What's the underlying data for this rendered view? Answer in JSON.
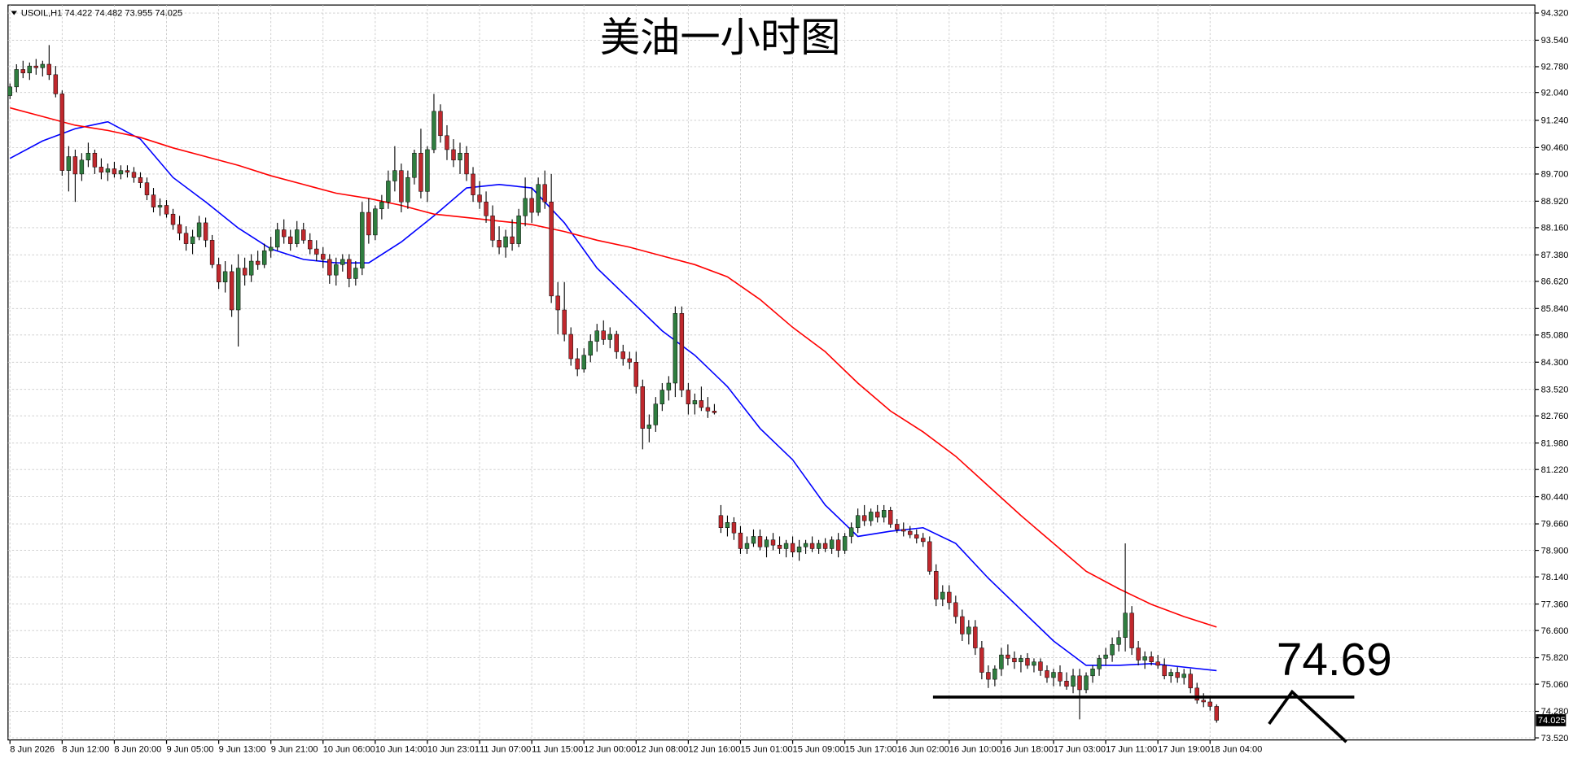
{
  "chart_data": {
    "type": "candlestick",
    "title": "美油一小时图",
    "symbol": "USOIL,H1",
    "up_color": "#2f7d3f",
    "down_color": "#c0282d",
    "wick_color": "#000000",
    "grid": true,
    "xlim": [
      -0.3,
      233.8
    ],
    "ylim": [
      73.46,
      94.55
    ],
    "yticks": [
      {
        "value": 94.32,
        "label": "94.320"
      },
      {
        "value": 93.54,
        "label": "93.540"
      },
      {
        "value": 92.78,
        "label": "92.780"
      },
      {
        "value": 92.04,
        "label": "92.040"
      },
      {
        "value": 91.24,
        "label": "91.240"
      },
      {
        "value": 90.46,
        "label": "90.460"
      },
      {
        "value": 89.7,
        "label": "89.700"
      },
      {
        "value": 88.92,
        "label": "88.920"
      },
      {
        "value": 88.16,
        "label": "88.160"
      },
      {
        "value": 87.38,
        "label": "87.380"
      },
      {
        "value": 86.62,
        "label": "86.620"
      },
      {
        "value": 85.84,
        "label": "85.840"
      },
      {
        "value": 85.08,
        "label": "85.080"
      },
      {
        "value": 84.3,
        "label": "84.300"
      },
      {
        "value": 83.52,
        "label": "83.520"
      },
      {
        "value": 82.76,
        "label": "82.760"
      },
      {
        "value": 81.98,
        "label": "81.980"
      },
      {
        "value": 81.22,
        "label": "81.220"
      },
      {
        "value": 80.44,
        "label": "80.440"
      },
      {
        "value": 79.66,
        "label": "79.660"
      },
      {
        "value": 78.9,
        "label": "78.900"
      },
      {
        "value": 78.14,
        "label": "78.140"
      },
      {
        "value": 77.36,
        "label": "77.360"
      },
      {
        "value": 76.6,
        "label": "76.600"
      },
      {
        "value": 75.82,
        "label": "75.820"
      },
      {
        "value": 75.06,
        "label": "75.060"
      },
      {
        "value": 74.28,
        "label": "74.280"
      },
      {
        "value": 73.52,
        "label": "73.520"
      }
    ],
    "xticks": [
      {
        "value": 0,
        "label": "8 Jun 2026"
      },
      {
        "value": 8,
        "label": "8 Jun 12:00"
      },
      {
        "value": 16,
        "label": "8 Jun 20:00"
      },
      {
        "value": 24,
        "label": "9 Jun 05:00"
      },
      {
        "value": 32,
        "label": "9 Jun 13:00"
      },
      {
        "value": 40,
        "label": "9 Jun 21:00"
      },
      {
        "value": 48,
        "label": "10 Jun 06:00"
      },
      {
        "value": 56,
        "label": "10 Jun 14:00"
      },
      {
        "value": 64,
        "label": "10 Jun 23:01"
      },
      {
        "value": 72,
        "label": "11 Jun 07:00"
      },
      {
        "value": 80,
        "label": "11 Jun 15:00"
      },
      {
        "value": 88,
        "label": "12 Jun 00:00"
      },
      {
        "value": 96,
        "label": "12 Jun 08:00"
      },
      {
        "value": 104,
        "label": "12 Jun 16:00"
      },
      {
        "value": 112,
        "label": "15 Jun 01:00"
      },
      {
        "value": 120,
        "label": "15 Jun 09:00"
      },
      {
        "value": 128,
        "label": "15 Jun 17:00"
      },
      {
        "value": 136,
        "label": "16 Jun 02:00"
      },
      {
        "value": 144,
        "label": "16 Jun 10:00"
      },
      {
        "value": 152,
        "label": "16 Jun 18:00"
      },
      {
        "value": 160,
        "label": "17 Jun 03:00"
      },
      {
        "value": 168,
        "label": "17 Jun 11:00"
      },
      {
        "value": 176,
        "label": "17 Jun 19:00"
      },
      {
        "value": 184,
        "label": "18 Jun 04:00"
      }
    ],
    "candles": [
      [
        91.95,
        92.3,
        91.85,
        92.2
      ],
      [
        92.2,
        92.85,
        92.05,
        92.7
      ],
      [
        92.7,
        92.95,
        92.45,
        92.6
      ],
      [
        92.6,
        92.9,
        92.4,
        92.8
      ],
      [
        92.8,
        93.0,
        92.55,
        92.75
      ],
      [
        92.75,
        92.95,
        92.5,
        92.85
      ],
      [
        92.85,
        93.4,
        92.4,
        92.55
      ],
      [
        92.55,
        92.8,
        91.9,
        92.0
      ],
      [
        92.0,
        92.1,
        89.65,
        89.8
      ],
      [
        89.8,
        90.5,
        89.2,
        90.2
      ],
      [
        90.2,
        90.4,
        88.9,
        89.7
      ],
      [
        89.7,
        90.3,
        89.5,
        90.1
      ],
      [
        90.1,
        90.6,
        89.9,
        90.3
      ],
      [
        90.3,
        90.4,
        89.7,
        89.9
      ],
      [
        89.9,
        90.15,
        89.55,
        89.75
      ],
      [
        89.75,
        90.0,
        89.5,
        89.85
      ],
      [
        89.85,
        90.05,
        89.6,
        89.7
      ],
      [
        89.7,
        89.95,
        89.55,
        89.8
      ],
      [
        89.8,
        89.95,
        89.6,
        89.75
      ],
      [
        89.75,
        89.9,
        89.45,
        89.6
      ],
      [
        89.6,
        89.75,
        89.3,
        89.45
      ],
      [
        89.45,
        89.6,
        88.95,
        89.1
      ],
      [
        89.1,
        89.3,
        88.6,
        88.75
      ],
      [
        88.75,
        89.0,
        88.5,
        88.8
      ],
      [
        88.8,
        88.95,
        88.45,
        88.55
      ],
      [
        88.55,
        88.7,
        88.1,
        88.25
      ],
      [
        88.25,
        88.5,
        87.8,
        88.0
      ],
      [
        88.0,
        88.2,
        87.5,
        87.7
      ],
      [
        87.7,
        88.1,
        87.4,
        87.9
      ],
      [
        87.9,
        88.5,
        87.8,
        88.3
      ],
      [
        88.3,
        88.45,
        87.6,
        87.8
      ],
      [
        87.8,
        87.95,
        87.0,
        87.1
      ],
      [
        87.1,
        87.3,
        86.4,
        86.6
      ],
      [
        86.6,
        87.2,
        86.3,
        86.9
      ],
      [
        86.9,
        87.1,
        85.6,
        85.8
      ],
      [
        85.8,
        87.4,
        84.75,
        87.0
      ],
      [
        87.0,
        87.3,
        86.5,
        86.8
      ],
      [
        86.8,
        87.4,
        86.6,
        87.2
      ],
      [
        87.2,
        87.5,
        86.95,
        87.1
      ],
      [
        87.1,
        87.7,
        87.0,
        87.5
      ],
      [
        87.5,
        87.9,
        87.3,
        87.6
      ],
      [
        87.6,
        88.3,
        87.5,
        88.1
      ],
      [
        88.1,
        88.4,
        87.7,
        87.9
      ],
      [
        87.9,
        88.1,
        87.5,
        87.7
      ],
      [
        87.7,
        88.35,
        87.6,
        88.1
      ],
      [
        88.1,
        88.3,
        87.7,
        87.8
      ],
      [
        87.8,
        88.0,
        87.4,
        87.55
      ],
      [
        87.55,
        87.8,
        87.2,
        87.4
      ],
      [
        87.4,
        87.6,
        87.0,
        87.25
      ],
      [
        87.25,
        87.4,
        86.55,
        86.8
      ],
      [
        86.8,
        87.3,
        86.5,
        87.1
      ],
      [
        87.1,
        87.4,
        86.9,
        87.25
      ],
      [
        87.25,
        87.4,
        86.45,
        86.7
      ],
      [
        86.7,
        87.2,
        86.5,
        87.0
      ],
      [
        87.0,
        88.9,
        86.8,
        88.6
      ],
      [
        88.6,
        89.0,
        87.7,
        87.95
      ],
      [
        87.95,
        88.8,
        87.8,
        88.7
      ],
      [
        88.7,
        89.1,
        88.4,
        88.9
      ],
      [
        88.9,
        89.8,
        88.7,
        89.5
      ],
      [
        89.5,
        90.5,
        89.2,
        89.8
      ],
      [
        89.8,
        90.0,
        88.6,
        88.9
      ],
      [
        88.9,
        89.8,
        88.7,
        89.6
      ],
      [
        89.6,
        90.4,
        89.4,
        90.3
      ],
      [
        90.3,
        91.0,
        89.0,
        89.2
      ],
      [
        89.2,
        90.5,
        88.9,
        90.4
      ],
      [
        90.4,
        92.0,
        90.3,
        91.5
      ],
      [
        91.5,
        91.7,
        90.6,
        90.8
      ],
      [
        90.8,
        91.1,
        90.1,
        90.4
      ],
      [
        90.4,
        90.7,
        89.9,
        90.1
      ],
      [
        90.1,
        90.6,
        89.7,
        90.3
      ],
      [
        90.3,
        90.5,
        89.5,
        89.7
      ],
      [
        89.7,
        89.9,
        88.9,
        89.1
      ],
      [
        89.1,
        89.5,
        88.7,
        88.9
      ],
      [
        88.9,
        89.2,
        88.3,
        88.5
      ],
      [
        88.5,
        88.8,
        87.6,
        87.8
      ],
      [
        87.8,
        88.2,
        87.4,
        87.6
      ],
      [
        87.6,
        88.1,
        87.3,
        87.9
      ],
      [
        87.9,
        88.4,
        87.5,
        87.7
      ],
      [
        87.7,
        88.7,
        87.6,
        88.5
      ],
      [
        88.5,
        89.6,
        88.2,
        89.0
      ],
      [
        89.0,
        89.3,
        88.3,
        88.6
      ],
      [
        88.6,
        89.6,
        88.5,
        89.4
      ],
      [
        89.4,
        89.8,
        88.7,
        88.9
      ],
      [
        88.9,
        89.7,
        86.0,
        86.2
      ],
      [
        86.2,
        86.6,
        85.1,
        85.8
      ],
      [
        85.8,
        86.6,
        84.9,
        85.1
      ],
      [
        85.1,
        85.3,
        84.2,
        84.4
      ],
      [
        84.4,
        84.7,
        83.9,
        84.1
      ],
      [
        84.1,
        84.7,
        84.0,
        84.5
      ],
      [
        84.5,
        85.1,
        84.3,
        84.9
      ],
      [
        84.9,
        85.4,
        84.6,
        85.2
      ],
      [
        85.2,
        85.5,
        84.8,
        84.95
      ],
      [
        84.95,
        85.3,
        84.7,
        85.1
      ],
      [
        85.1,
        85.2,
        84.4,
        84.6
      ],
      [
        84.6,
        84.8,
        84.2,
        84.4
      ],
      [
        84.4,
        84.6,
        84.1,
        84.3
      ],
      [
        84.3,
        84.6,
        83.4,
        83.6
      ],
      [
        83.6,
        83.8,
        81.8,
        82.4
      ],
      [
        82.4,
        82.8,
        82.0,
        82.5
      ],
      [
        82.5,
        83.3,
        82.3,
        83.1
      ],
      [
        83.1,
        83.7,
        82.9,
        83.5
      ],
      [
        83.5,
        83.9,
        83.2,
        83.7
      ],
      [
        83.7,
        85.9,
        83.3,
        85.7
      ],
      [
        85.7,
        85.9,
        83.3,
        83.5
      ],
      [
        83.5,
        83.7,
        82.8,
        83.1
      ],
      [
        83.1,
        83.4,
        82.8,
        83.2
      ],
      [
        83.2,
        83.6,
        82.9,
        83.0
      ],
      [
        83.0,
        83.3,
        82.7,
        82.9
      ],
      [
        82.9,
        83.1,
        82.8,
        82.85
      ],
      [
        79.9,
        80.2,
        79.4,
        79.55
      ],
      [
        79.55,
        79.9,
        79.3,
        79.7
      ],
      [
        79.7,
        79.85,
        79.2,
        79.4
      ],
      [
        79.4,
        79.6,
        78.8,
        78.95
      ],
      [
        78.95,
        79.3,
        78.8,
        79.1
      ],
      [
        79.1,
        79.5,
        79.0,
        79.3
      ],
      [
        79.3,
        79.5,
        78.9,
        79.0
      ],
      [
        79.0,
        79.3,
        78.7,
        79.2
      ],
      [
        79.2,
        79.4,
        78.9,
        79.05
      ],
      [
        79.05,
        79.3,
        78.8,
        78.95
      ],
      [
        78.95,
        79.2,
        78.7,
        79.1
      ],
      [
        79.1,
        79.3,
        78.7,
        78.85
      ],
      [
        78.85,
        79.2,
        78.6,
        79.0
      ],
      [
        79.0,
        79.2,
        78.8,
        79.1
      ],
      [
        79.1,
        79.3,
        78.85,
        78.95
      ],
      [
        78.95,
        79.2,
        78.8,
        79.1
      ],
      [
        79.1,
        79.25,
        78.85,
        78.95
      ],
      [
        78.95,
        79.3,
        78.8,
        79.2
      ],
      [
        79.2,
        79.4,
        78.7,
        78.9
      ],
      [
        78.9,
        79.4,
        78.8,
        79.3
      ],
      [
        79.3,
        79.7,
        79.1,
        79.55
      ],
      [
        79.55,
        80.1,
        79.4,
        79.9
      ],
      [
        79.9,
        80.2,
        79.6,
        79.75
      ],
      [
        79.75,
        80.1,
        79.6,
        80.0
      ],
      [
        80.0,
        80.2,
        79.7,
        79.85
      ],
      [
        79.85,
        80.2,
        79.7,
        80.05
      ],
      [
        80.05,
        80.15,
        79.55,
        79.65
      ],
      [
        79.65,
        79.8,
        79.4,
        79.5
      ],
      [
        79.5,
        79.7,
        79.3,
        79.45
      ],
      [
        79.45,
        79.6,
        79.25,
        79.35
      ],
      [
        79.35,
        79.5,
        79.1,
        79.25
      ],
      [
        79.25,
        79.4,
        79.0,
        79.15
      ],
      [
        79.15,
        79.3,
        78.2,
        78.3
      ],
      [
        78.3,
        78.5,
        77.3,
        77.5
      ],
      [
        77.5,
        77.9,
        77.3,
        77.7
      ],
      [
        77.7,
        77.9,
        77.2,
        77.4
      ],
      [
        77.4,
        77.6,
        76.8,
        77.0
      ],
      [
        77.0,
        77.2,
        76.3,
        76.5
      ],
      [
        76.5,
        76.9,
        76.2,
        76.7
      ],
      [
        76.7,
        76.9,
        75.9,
        76.1
      ],
      [
        76.1,
        76.3,
        75.2,
        75.4
      ],
      [
        75.4,
        75.6,
        74.95,
        75.2
      ],
      [
        75.2,
        75.6,
        75.0,
        75.5
      ],
      [
        75.5,
        76.1,
        75.3,
        75.9
      ],
      [
        75.9,
        76.2,
        75.6,
        75.8
      ],
      [
        75.8,
        76.0,
        75.5,
        75.7
      ],
      [
        75.7,
        75.9,
        75.4,
        75.8
      ],
      [
        75.8,
        75.95,
        75.5,
        75.6
      ],
      [
        75.6,
        75.8,
        75.4,
        75.7
      ],
      [
        75.7,
        75.8,
        75.3,
        75.45
      ],
      [
        75.45,
        75.6,
        75.1,
        75.25
      ],
      [
        75.25,
        75.5,
        75.0,
        75.4
      ],
      [
        75.4,
        75.6,
        75.0,
        75.15
      ],
      [
        75.15,
        75.4,
        74.9,
        75.0
      ],
      [
        75.0,
        75.5,
        74.8,
        75.3
      ],
      [
        75.3,
        75.5,
        74.05,
        74.9
      ],
      [
        74.9,
        75.4,
        74.8,
        75.3
      ],
      [
        75.3,
        75.6,
        75.1,
        75.5
      ],
      [
        75.5,
        75.9,
        75.3,
        75.8
      ],
      [
        75.8,
        76.1,
        75.6,
        75.9
      ],
      [
        75.9,
        76.4,
        75.7,
        76.2
      ],
      [
        76.2,
        76.6,
        76.0,
        76.4
      ],
      [
        76.4,
        79.1,
        76.0,
        77.1
      ],
      [
        77.1,
        77.3,
        75.9,
        76.1
      ],
      [
        76.1,
        76.3,
        75.6,
        75.75
      ],
      [
        75.75,
        76.0,
        75.5,
        75.85
      ],
      [
        75.85,
        76.0,
        75.6,
        75.7
      ],
      [
        75.7,
        75.9,
        75.5,
        75.6
      ],
      [
        75.6,
        75.8,
        75.2,
        75.3
      ],
      [
        75.3,
        75.5,
        75.1,
        75.4
      ],
      [
        75.4,
        75.55,
        75.1,
        75.25
      ],
      [
        75.25,
        75.5,
        75.05,
        75.35
      ],
      [
        75.35,
        75.5,
        74.8,
        74.95
      ],
      [
        74.95,
        75.1,
        74.5,
        74.6
      ],
      [
        74.6,
        74.8,
        74.4,
        74.55
      ],
      [
        74.55,
        74.7,
        74.3,
        74.422
      ],
      [
        74.422,
        74.482,
        73.955,
        74.025
      ]
    ],
    "ma_x": [
      0,
      5,
      10,
      15,
      20,
      25,
      30,
      35,
      40,
      45,
      50,
      55,
      60,
      65,
      70,
      75,
      80,
      85,
      90,
      95,
      100,
      105,
      110,
      115,
      120,
      125,
      130,
      135,
      140,
      145,
      150,
      155,
      160,
      165,
      170,
      175,
      180,
      185
    ],
    "ma_lines": [
      {
        "color": "#0000ff",
        "values": [
          90.15,
          90.65,
          91.0,
          91.2,
          90.7,
          89.6,
          88.9,
          88.15,
          87.55,
          87.25,
          87.15,
          87.15,
          87.75,
          88.5,
          89.3,
          89.4,
          89.3,
          88.3,
          87.0,
          86.1,
          85.2,
          84.5,
          83.6,
          82.4,
          81.5,
          80.2,
          79.3,
          79.45,
          79.55,
          79.1,
          78.1,
          77.2,
          76.3,
          75.6,
          75.6,
          75.65,
          75.55,
          75.45
        ]
      },
      {
        "color": "#ff0000",
        "values": [
          91.6,
          91.35,
          91.1,
          90.95,
          90.75,
          90.45,
          90.2,
          89.95,
          89.65,
          89.4,
          89.15,
          89.0,
          88.8,
          88.55,
          88.45,
          88.35,
          88.25,
          88.05,
          87.8,
          87.6,
          87.35,
          87.1,
          86.75,
          86.1,
          85.3,
          84.6,
          83.7,
          82.9,
          82.3,
          81.6,
          80.75,
          79.9,
          79.1,
          78.3,
          77.8,
          77.35,
          77.0,
          76.7
        ]
      }
    ],
    "annotation": {
      "value": 74.69
    }
  }
}
